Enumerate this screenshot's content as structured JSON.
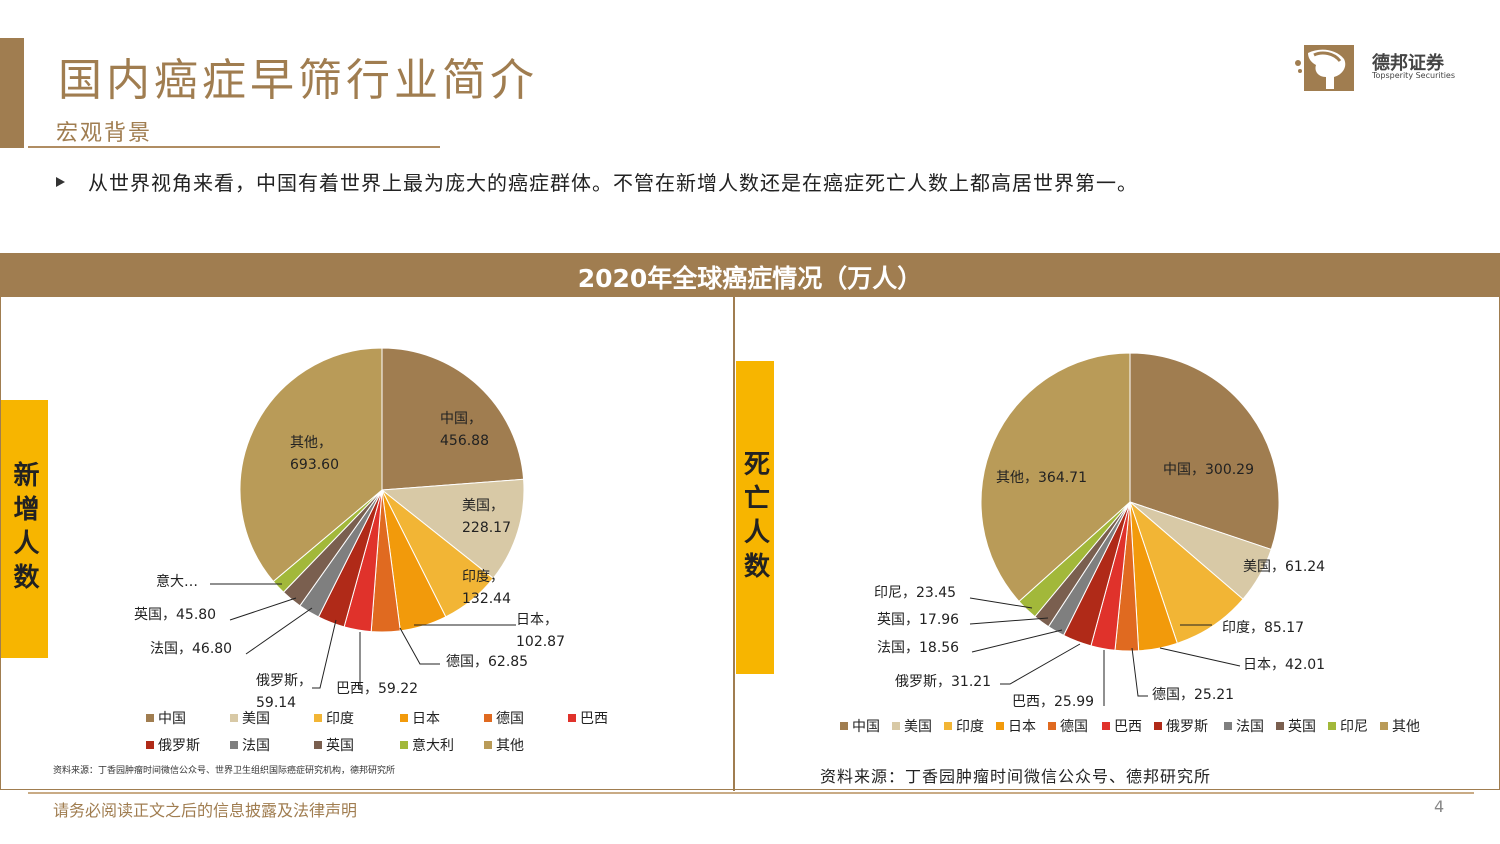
{
  "header": {
    "title": "国内癌症早筛行业简介",
    "section": "宏观背景",
    "summary": "从世界视角来看，中国有着世界上最为庞大的癌症群体。不管在新增人数还是在癌症死亡人数上都高居世界第一。",
    "logo_cn": "德邦证券",
    "logo_en": "Topsperity Securities"
  },
  "panel": {
    "title": "2020年全球癌症情况（万人）",
    "left_label": "新增人数",
    "right_label": "死亡人数",
    "left_source": "资料来源：丁香园肿瘤时间微信公众号、世界卫生组织国际癌症研究机构，德邦研究所",
    "right_source": "资料来源：丁香园肿瘤时间微信公众号、德邦研究所"
  },
  "colors": {
    "accent": "#a07d50",
    "highlight": "#f7b500"
  },
  "chart_data": [
    {
      "type": "pie",
      "title": "",
      "categories": [
        "中国",
        "美国",
        "印度",
        "日本",
        "德国",
        "巴西",
        "俄罗斯",
        "法国",
        "英国",
        "意大利",
        "其他"
      ],
      "values": [
        456.88,
        228.17,
        132.44,
        102.87,
        62.85,
        59.22,
        59.14,
        46.8,
        45.8,
        null,
        693.6
      ],
      "colors": [
        "#a07d50",
        "#d8c9a6",
        "#f2b535",
        "#f29a0b",
        "#e06a20",
        "#e0322b",
        "#b02a18",
        "#7f7f7f",
        "#7a5f4f",
        "#a2b83a",
        "#b99b58"
      ],
      "data_labels": [
        "中国，\n456.88",
        "美国，\n228.17",
        "印度，\n132.44",
        "日本，\n102.87",
        "德国，62.85",
        "巴西，59.22",
        "俄罗斯，\n59.14",
        "法国，46.80",
        "英国，45.80",
        "意大…",
        "其他，\n693.60"
      ],
      "legend": [
        "中国",
        "美国",
        "印度",
        "日本",
        "德国",
        "巴西",
        "俄罗斯",
        "法国",
        "英国",
        "意大利",
        "其他"
      ],
      "legend_position": "bottom"
    },
    {
      "type": "pie",
      "title": "",
      "categories": [
        "中国",
        "美国",
        "印度",
        "日本",
        "德国",
        "巴西",
        "俄罗斯",
        "法国",
        "英国",
        "印尼",
        "其他"
      ],
      "values": [
        300.29,
        61.24,
        85.17,
        42.01,
        25.21,
        25.99,
        31.21,
        18.56,
        17.96,
        23.45,
        364.71
      ],
      "colors": [
        "#a07d50",
        "#d8c9a6",
        "#f2b535",
        "#f29a0b",
        "#e06a20",
        "#e0322b",
        "#b02a18",
        "#7f7f7f",
        "#7a5f4f",
        "#a2b83a",
        "#b99b58"
      ],
      "data_labels": [
        "中国，300.29",
        "美国，61.24",
        "印度，85.17",
        "日本，42.01",
        "德国，25.21",
        "巴西，25.99",
        "俄罗斯，31.21",
        "法国，18.56",
        "英国，17.96",
        "印尼，23.45",
        "其他，364.71"
      ],
      "legend": [
        "中国",
        "美国",
        "印度",
        "日本",
        "德国",
        "巴西",
        "俄罗斯",
        "法国",
        "英国",
        "印尼",
        "其他"
      ],
      "legend_position": "bottom"
    }
  ],
  "footer": {
    "disclaimer": "请务必阅读正文之后的信息披露及法律声明",
    "page": "4"
  }
}
